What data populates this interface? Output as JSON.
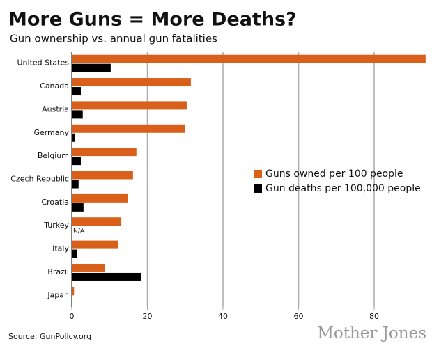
{
  "chart_data": {
    "type": "bar",
    "orientation": "horizontal",
    "title": "More Guns = More Deaths?",
    "subtitle": "Gun ownership vs. annual gun fatalities",
    "source": "Source: GunPolicy.org",
    "publisher": "Mother Jones",
    "categories": [
      "United States",
      "Canada",
      "Austria",
      "Germany",
      "Belgium",
      "Czech Republic",
      "Croatia",
      "Turkey",
      "Italy",
      "Brazil",
      "Japan"
    ],
    "series": [
      {
        "name": "Guns owned per 100 people",
        "color": "#d9601a",
        "values": [
          93.6,
          31.5,
          30.4,
          30.0,
          17.1,
          16.2,
          14.9,
          13.1,
          12.2,
          8.8,
          0.6
        ]
      },
      {
        "name": "Gun deaths per 100,000 people",
        "color": "#000000",
        "values": [
          10.3,
          2.4,
          2.9,
          0.9,
          2.4,
          1.8,
          3.1,
          null,
          1.3,
          18.4,
          null
        ],
        "value_labels": [
          null,
          null,
          null,
          null,
          null,
          null,
          null,
          "N/A",
          null,
          null,
          null
        ]
      }
    ],
    "xlim": [
      0,
      94
    ],
    "xticks": [
      0,
      20,
      40,
      60,
      80
    ],
    "grid": true,
    "legend": "right"
  }
}
